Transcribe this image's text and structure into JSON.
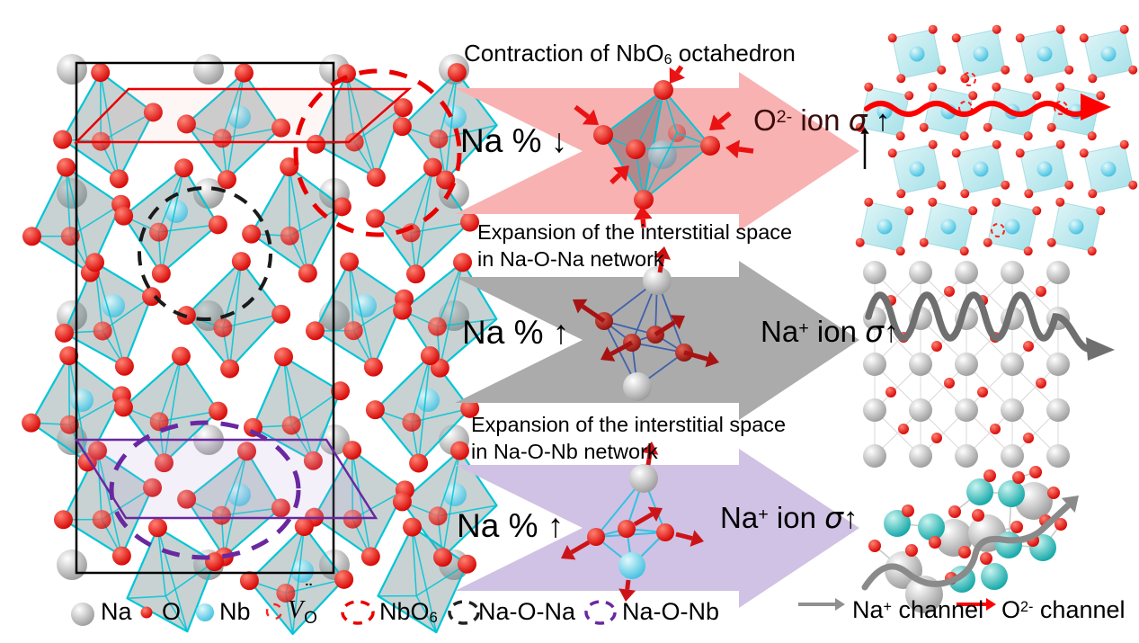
{
  "colors": {
    "pink_arrow": "#f8b2b2",
    "gray_arrow": "#ababab",
    "purple_arrow": "#cfc2e4",
    "bright_red": "#ff0000",
    "sphere_red": "#d40000",
    "dark_red_text": "#3a0b0b",
    "cyan_edge": "#00c6d6",
    "nb_cyan": "#3fc0e0",
    "na_gray": "#9a9a9a",
    "teal": "#0da5a5",
    "black_dash": "#1a1a1a",
    "red_dash": "#e80000",
    "purple_dash": "#6a28a0",
    "dark_blue_edge": "#3a5fae",
    "crimson_arrow": "#cc1418",
    "channel_gray": "#8a8a8a"
  },
  "rows": [
    {
      "id": "contraction-nbo6",
      "title": {
        "pre": "Contraction of NbO",
        "sub": "6",
        "post": " octahedron"
      },
      "left_label": {
        "text": "Na % ",
        "arrow": "↓"
      },
      "right_label": {
        "base": "O",
        "sup": "2-",
        "mid": " ion ",
        "sigma": "σ",
        "arrow": " ↑"
      }
    },
    {
      "id": "expansion-na-o-na",
      "title_line1": "Expansion of the interstitial space",
      "title_line2": "in Na-O-Na network",
      "left_label": {
        "text": "Na % ",
        "arrow": "↑"
      },
      "right_label": {
        "base": "Na",
        "sup": "+",
        "mid": " ion ",
        "sigma": "σ",
        "arrow": "↑"
      }
    },
    {
      "id": "expansion-na-o-nb",
      "title_line1": "Expansion of the interstitial space",
      "title_line2": "in Na-O-Nb network",
      "left_label": {
        "text": "Na % ",
        "arrow": "↑"
      },
      "right_label": {
        "base": "Na",
        "sup": "+",
        "mid": " ion ",
        "sigma": "σ",
        "arrow": "↑"
      }
    }
  ],
  "legend": {
    "na": "Na",
    "o": "O",
    "nb": "Nb",
    "vacancy": {
      "symbol": "V",
      "dots": "¨",
      "sub": "O"
    },
    "nbo6": {
      "pre": "NbO",
      "sub": "6"
    },
    "na_o_na": "Na-O-Na",
    "na_o_nb": "Na-O-Nb",
    "na_channel": {
      "base": "Na",
      "sup": "+",
      "rest": " channel"
    },
    "o_channel": {
      "base": "O",
      "sup": "2-",
      "rest": " channel"
    }
  }
}
